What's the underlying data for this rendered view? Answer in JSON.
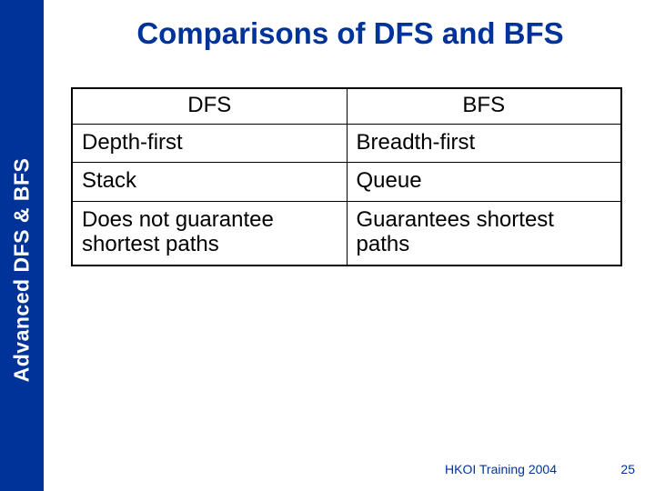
{
  "sidebar": {
    "label": "Advanced DFS & BFS"
  },
  "title": "Comparisons of DFS and BFS",
  "table": {
    "headers": {
      "dfs": "DFS",
      "bfs": "BFS"
    },
    "rows": [
      {
        "dfs": "Depth-first",
        "bfs": "Breadth-first"
      },
      {
        "dfs": "Stack",
        "bfs": "Queue"
      },
      {
        "dfs": "Does not guarantee shortest paths",
        "bfs": "Guarantees shortest paths"
      }
    ]
  },
  "footer": {
    "source": "HKOI Training 2004",
    "page": "25"
  },
  "colors": {
    "accent": "#003399",
    "background": "#ffffff",
    "text": "#000000",
    "border": "#000000"
  }
}
